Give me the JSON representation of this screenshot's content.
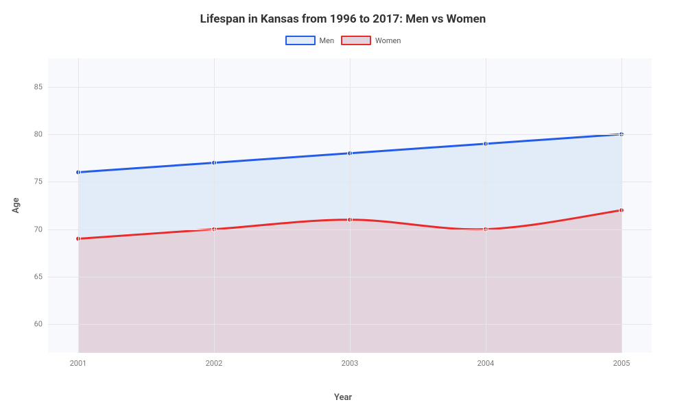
{
  "chart": {
    "type": "line-area",
    "title": "Lifespan in Kansas from 1996 to 2017: Men vs Women",
    "title_fontsize": 17,
    "title_fontweight": "bold",
    "xlabel": "Year",
    "ylabel": "Age",
    "label_fontsize": 13,
    "background_color": "#ffffff",
    "plot_background_color": "#f8f9fc",
    "grid_color": "#e5e5ea",
    "tick_fontsize": 11,
    "tick_color": "#777777",
    "categories": [
      "2001",
      "2002",
      "2003",
      "2004",
      "2005"
    ],
    "y_ticks": [
      60,
      65,
      70,
      75,
      80,
      85
    ],
    "ylim": [
      57,
      88
    ],
    "xlim_padding": 0.05,
    "series": [
      {
        "name": "Men",
        "values": [
          76,
          77,
          78,
          79,
          80
        ],
        "line_color": "#245ce8",
        "fill_color": "#e1ecf8",
        "fill_opacity": 1,
        "marker_size": 3.5,
        "line_width": 3
      },
      {
        "name": "Women",
        "values": [
          69,
          70,
          71,
          70,
          72
        ],
        "line_color": "#e82c2c",
        "fill_color": "#e3d3dc",
        "fill_opacity": 1,
        "marker_size": 3.5,
        "line_width": 3
      }
    ],
    "legend": {
      "swatch_width": 44,
      "swatch_height": 14,
      "fontsize": 11
    }
  }
}
